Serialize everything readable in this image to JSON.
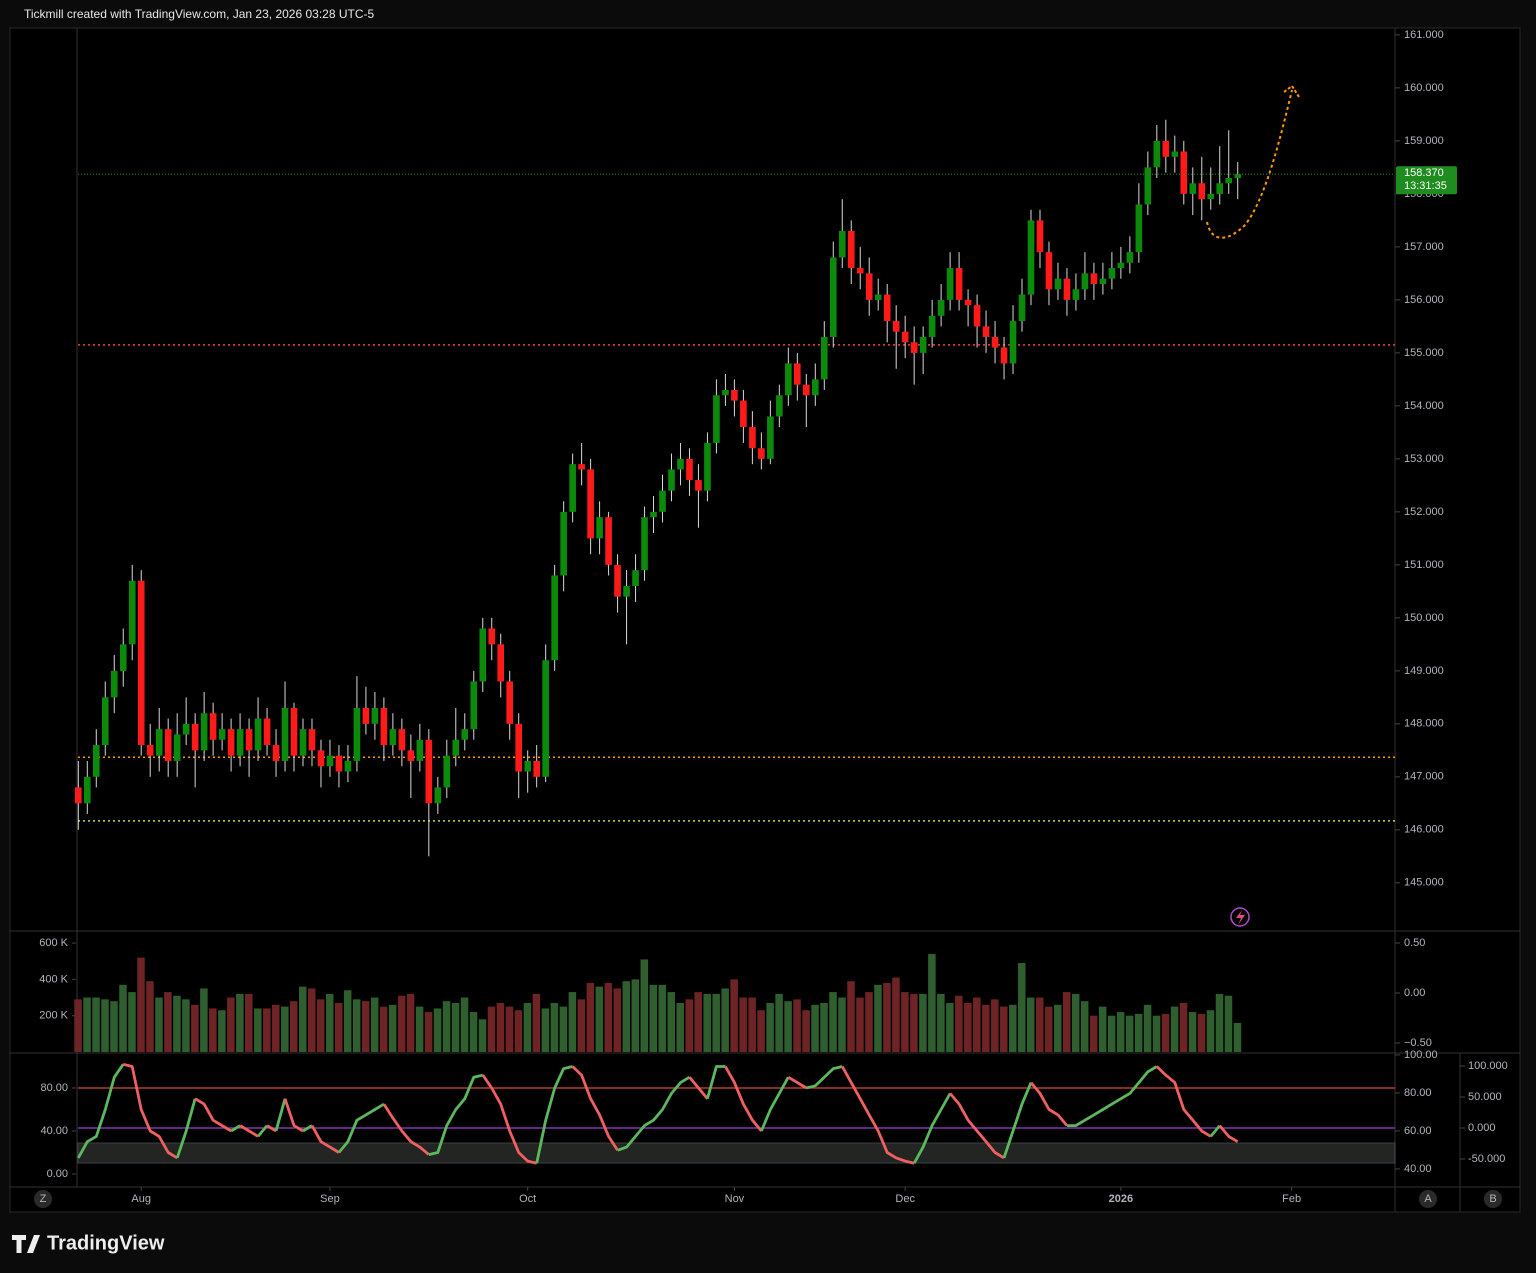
{
  "header": "Tickmill created with TradingView.com, Jan 23, 2026 03:28 UTC-5",
  "footer_logo": "TradingView",
  "buttons": [
    "Z",
    "A",
    "B"
  ],
  "chart_data": [
    {
      "type": "candlestick",
      "up_color": "#0c8a0c",
      "down_color": "#ff1a1a",
      "wick_color": "#d8d8d8",
      "xlim": [
        -7.6,
        146.5
      ],
      "xticks": [
        {
          "value": 7,
          "label": "Aug"
        },
        {
          "value": 28,
          "label": "Sep"
        },
        {
          "value": 50,
          "label": "Oct"
        },
        {
          "value": 73,
          "label": "Nov"
        },
        {
          "value": 92,
          "label": "Dec"
        },
        {
          "value": 116,
          "label": "2026"
        },
        {
          "value": 135,
          "label": "Feb"
        }
      ],
      "ylim": [
        144.11,
        161.13
      ],
      "yticks": [
        {
          "value": 145,
          "label": "145.000"
        },
        {
          "value": 146,
          "label": "146.000"
        },
        {
          "value": 147,
          "label": "147.000"
        },
        {
          "value": 148,
          "label": "148.000"
        },
        {
          "value": 149,
          "label": "149.000"
        },
        {
          "value": 150,
          "label": "150.000"
        },
        {
          "value": 151,
          "label": "151.000"
        },
        {
          "value": 152,
          "label": "152.000"
        },
        {
          "value": 153,
          "label": "153.000"
        },
        {
          "value": 154,
          "label": "154.000"
        },
        {
          "value": 155,
          "label": "155.000"
        },
        {
          "value": 156,
          "label": "156.000"
        },
        {
          "value": 157,
          "label": "157.000"
        },
        {
          "value": 158,
          "label": "158.000"
        },
        {
          "value": 159,
          "label": "159.000"
        },
        {
          "value": 160,
          "label": "160.000"
        },
        {
          "value": 161,
          "label": "161.000"
        }
      ],
      "grid": false,
      "levels": [
        {
          "value": 155.15,
          "color": "#f44336"
        },
        {
          "value": 147.37,
          "color": "#ff9800"
        },
        {
          "value": 146.17,
          "color": "#cddc39"
        }
      ],
      "last_price": {
        "value": 158.37,
        "label": "158.370",
        "countdown": "13:31:35",
        "color": "#1e8c1e"
      },
      "ohlc": [
        [
          146.8,
          147.3,
          146.0,
          146.5
        ],
        [
          146.5,
          147.3,
          146.3,
          147.0
        ],
        [
          147.0,
          147.9,
          146.8,
          147.6
        ],
        [
          147.6,
          148.8,
          147.4,
          148.5
        ],
        [
          148.5,
          149.3,
          148.2,
          149.0
        ],
        [
          149.0,
          149.8,
          148.7,
          149.5
        ],
        [
          149.5,
          151.0,
          149.2,
          150.7
        ],
        [
          150.7,
          150.9,
          147.4,
          147.6
        ],
        [
          147.6,
          148.0,
          147.0,
          147.4
        ],
        [
          147.4,
          148.3,
          147.1,
          147.9
        ],
        [
          147.9,
          148.1,
          147.0,
          147.3
        ],
        [
          147.3,
          148.2,
          147.0,
          147.8
        ],
        [
          147.8,
          148.5,
          147.6,
          148.0
        ],
        [
          148.0,
          148.2,
          146.8,
          147.5
        ],
        [
          147.5,
          148.6,
          147.3,
          148.2
        ],
        [
          148.2,
          148.4,
          147.4,
          147.7
        ],
        [
          147.7,
          148.2,
          147.5,
          147.9
        ],
        [
          147.9,
          148.1,
          147.1,
          147.4
        ],
        [
          147.4,
          148.2,
          147.2,
          147.9
        ],
        [
          147.9,
          148.1,
          147.0,
          147.5
        ],
        [
          147.5,
          148.5,
          147.3,
          148.1
        ],
        [
          148.1,
          148.3,
          147.4,
          147.6
        ],
        [
          147.6,
          147.9,
          147.0,
          147.3
        ],
        [
          147.3,
          148.8,
          147.1,
          148.3
        ],
        [
          148.3,
          148.4,
          147.1,
          147.4
        ],
        [
          147.4,
          148.1,
          147.2,
          147.9
        ],
        [
          147.9,
          148.1,
          147.2,
          147.5
        ],
        [
          147.5,
          147.7,
          146.8,
          147.2
        ],
        [
          147.2,
          147.7,
          147.0,
          147.4
        ],
        [
          147.4,
          147.6,
          146.8,
          147.1
        ],
        [
          147.1,
          147.6,
          146.9,
          147.3
        ],
        [
          147.3,
          148.9,
          147.1,
          148.3
        ],
        [
          148.3,
          148.7,
          147.8,
          148.0
        ],
        [
          148.0,
          148.6,
          147.7,
          148.3
        ],
        [
          148.3,
          148.5,
          147.3,
          147.6
        ],
        [
          147.6,
          148.2,
          147.4,
          147.9
        ],
        [
          147.9,
          148.1,
          147.2,
          147.5
        ],
        [
          147.5,
          147.8,
          146.6,
          147.3
        ],
        [
          147.3,
          148.0,
          147.1,
          147.7
        ],
        [
          147.7,
          147.9,
          145.5,
          146.5
        ],
        [
          146.5,
          147.0,
          146.3,
          146.8
        ],
        [
          146.8,
          147.7,
          146.6,
          147.4
        ],
        [
          147.4,
          148.3,
          147.2,
          147.7
        ],
        [
          147.7,
          148.2,
          147.5,
          147.9
        ],
        [
          147.9,
          149.0,
          147.7,
          148.8
        ],
        [
          148.8,
          150.0,
          148.6,
          149.8
        ],
        [
          149.8,
          150.0,
          149.2,
          149.5
        ],
        [
          149.5,
          149.7,
          148.5,
          148.8
        ],
        [
          148.8,
          149.0,
          147.7,
          148.0
        ],
        [
          148.0,
          148.2,
          146.6,
          147.1
        ],
        [
          147.1,
          147.5,
          146.7,
          147.3
        ],
        [
          147.3,
          147.6,
          146.8,
          147.0
        ],
        [
          147.0,
          149.5,
          146.9,
          149.2
        ],
        [
          149.2,
          151.0,
          149.0,
          150.8
        ],
        [
          150.8,
          152.2,
          150.5,
          152.0
        ],
        [
          152.0,
          153.1,
          151.8,
          152.9
        ],
        [
          152.9,
          153.3,
          152.5,
          152.8
        ],
        [
          152.8,
          153.0,
          151.2,
          151.5
        ],
        [
          151.5,
          152.2,
          151.2,
          151.9
        ],
        [
          151.9,
          152.0,
          150.8,
          151.0
        ],
        [
          151.0,
          151.2,
          150.1,
          150.4
        ],
        [
          150.4,
          150.9,
          149.5,
          150.6
        ],
        [
          150.6,
          151.2,
          150.3,
          150.9
        ],
        [
          150.9,
          152.1,
          150.7,
          151.9
        ],
        [
          151.9,
          152.3,
          151.6,
          152.0
        ],
        [
          152.0,
          152.7,
          151.8,
          152.4
        ],
        [
          152.4,
          153.1,
          152.2,
          152.8
        ],
        [
          152.8,
          153.3,
          152.5,
          153.0
        ],
        [
          153.0,
          153.2,
          152.3,
          152.6
        ],
        [
          152.6,
          152.9,
          151.7,
          152.4
        ],
        [
          152.4,
          153.5,
          152.2,
          153.3
        ],
        [
          153.3,
          154.5,
          153.1,
          154.2
        ],
        [
          154.2,
          154.6,
          154.0,
          154.3
        ],
        [
          154.3,
          154.5,
          153.8,
          154.1
        ],
        [
          154.1,
          154.3,
          153.3,
          153.6
        ],
        [
          153.6,
          153.9,
          152.9,
          153.2
        ],
        [
          153.2,
          153.5,
          152.8,
          153.0
        ],
        [
          153.0,
          154.1,
          152.9,
          153.8
        ],
        [
          153.8,
          154.4,
          153.6,
          154.2
        ],
        [
          154.2,
          155.1,
          154.0,
          154.8
        ],
        [
          154.8,
          155.0,
          154.1,
          154.4
        ],
        [
          154.4,
          154.6,
          153.6,
          154.2
        ],
        [
          154.2,
          154.8,
          154.0,
          154.5
        ],
        [
          154.5,
          155.6,
          154.3,
          155.3
        ],
        [
          155.3,
          157.1,
          155.1,
          156.8
        ],
        [
          156.8,
          157.9,
          156.6,
          157.3
        ],
        [
          157.3,
          157.5,
          156.3,
          156.6
        ],
        [
          156.6,
          157.0,
          156.2,
          156.5
        ],
        [
          156.5,
          156.8,
          155.7,
          156.0
        ],
        [
          156.0,
          156.4,
          155.8,
          156.1
        ],
        [
          156.1,
          156.3,
          155.2,
          155.6
        ],
        [
          155.6,
          155.9,
          154.7,
          155.4
        ],
        [
          155.4,
          155.7,
          154.9,
          155.2
        ],
        [
          155.2,
          155.5,
          154.4,
          155.0
        ],
        [
          155.0,
          155.5,
          154.6,
          155.3
        ],
        [
          155.3,
          156.0,
          155.1,
          155.7
        ],
        [
          155.7,
          156.3,
          155.5,
          156.0
        ],
        [
          156.0,
          156.9,
          155.8,
          156.6
        ],
        [
          156.6,
          156.9,
          155.8,
          156.0
        ],
        [
          156.0,
          156.2,
          155.5,
          155.9
        ],
        [
          155.9,
          156.1,
          155.1,
          155.5
        ],
        [
          155.5,
          155.8,
          155.0,
          155.3
        ],
        [
          155.3,
          155.6,
          154.8,
          155.1
        ],
        [
          155.1,
          155.3,
          154.5,
          154.8
        ],
        [
          154.8,
          155.9,
          154.6,
          155.6
        ],
        [
          155.6,
          156.4,
          155.4,
          156.1
        ],
        [
          156.1,
          157.7,
          155.9,
          157.5
        ],
        [
          157.5,
          157.7,
          156.6,
          156.9
        ],
        [
          156.9,
          157.1,
          155.9,
          156.2
        ],
        [
          156.2,
          156.7,
          156.0,
          156.4
        ],
        [
          156.4,
          156.6,
          155.7,
          156.0
        ],
        [
          156.0,
          156.5,
          155.8,
          156.2
        ],
        [
          156.2,
          156.9,
          156.0,
          156.5
        ],
        [
          156.5,
          156.7,
          156.0,
          156.3
        ],
        [
          156.3,
          156.7,
          156.1,
          156.4
        ],
        [
          156.4,
          156.9,
          156.2,
          156.6
        ],
        [
          156.6,
          157.0,
          156.4,
          156.7
        ],
        [
          156.7,
          157.2,
          156.5,
          156.9
        ],
        [
          156.9,
          158.2,
          156.7,
          157.8
        ],
        [
          157.8,
          158.8,
          157.6,
          158.5
        ],
        [
          158.5,
          159.3,
          158.3,
          159.0
        ],
        [
          159.0,
          159.4,
          158.4,
          158.7
        ],
        [
          158.7,
          159.1,
          158.4,
          158.8
        ],
        [
          158.8,
          159.0,
          157.8,
          158.0
        ],
        [
          158.0,
          158.5,
          157.6,
          158.2
        ],
        [
          158.2,
          158.7,
          157.5,
          157.9
        ],
        [
          157.9,
          158.5,
          157.7,
          158.0
        ],
        [
          158.0,
          158.9,
          157.8,
          158.2
        ],
        [
          158.2,
          159.2,
          158.0,
          158.3
        ],
        [
          158.3,
          158.6,
          157.9,
          158.37
        ]
      ]
    },
    {
      "type": "bar",
      "up_color": "#2f5f2f",
      "down_color": "#6e2424",
      "ylim": [
        0,
        661
      ],
      "yticks": [
        {
          "value": 200,
          "label": "200 K"
        },
        {
          "value": 400,
          "label": "400 K"
        },
        {
          "value": 600,
          "label": "600 K"
        }
      ],
      "y2lim": [
        -0.59,
        0.61
      ],
      "y2ticks": [
        {
          "value": -0.5,
          "label": "−0.50"
        },
        {
          "value": 0,
          "label": "0.00"
        },
        {
          "value": 0.5,
          "label": "0.50"
        }
      ],
      "values": [
        290,
        300,
        300,
        290,
        280,
        370,
        330,
        520,
        390,
        300,
        330,
        310,
        290,
        260,
        350,
        240,
        230,
        300,
        320,
        320,
        240,
        240,
        260,
        250,
        280,
        360,
        350,
        290,
        320,
        270,
        340,
        290,
        280,
        300,
        250,
        260,
        310,
        320,
        250,
        220,
        240,
        280,
        270,
        300,
        220,
        180,
        250,
        270,
        250,
        230,
        270,
        320,
        240,
        270,
        250,
        330,
        290,
        380,
        360,
        380,
        350,
        390,
        400,
        510,
        370,
        370,
        330,
        270,
        290,
        330,
        320,
        320,
        350,
        400,
        300,
        300,
        230,
        270,
        320,
        280,
        290,
        230,
        260,
        270,
        330,
        300,
        390,
        300,
        330,
        370,
        380,
        410,
        330,
        320,
        320,
        540,
        320,
        270,
        310,
        270,
        300,
        260,
        290,
        250,
        260,
        490,
        300,
        300,
        250,
        260,
        330,
        320,
        280,
        200,
        250,
        200,
        220,
        200,
        210,
        260,
        200,
        210,
        250,
        270,
        220,
        210,
        230,
        320,
        310,
        160
      ]
    },
    {
      "type": "line",
      "up_color": "#5cb85c",
      "down_color": "#f06060",
      "ylim": [
        -12.1,
        111.6
      ],
      "yticks": [
        {
          "value": 0,
          "label": "0.00"
        },
        {
          "value": 40,
          "label": "40.00"
        },
        {
          "value": 80,
          "label": "80.00"
        }
      ],
      "y2lim": [
        30.5,
        100.5
      ],
      "y2ticks": [
        {
          "value": 40,
          "label": "40.00"
        },
        {
          "value": 60,
          "label": "60.00"
        },
        {
          "value": 80,
          "label": "80.00"
        },
        {
          "value": 100,
          "label": "100.00"
        }
      ],
      "y3lim": [
        -95.2,
        119.4
      ],
      "y3ticks": [
        {
          "value": -50,
          "label": "-50.000"
        },
        {
          "value": 0,
          "label": "0.000"
        },
        {
          "value": 50,
          "label": "50.000"
        },
        {
          "value": 100,
          "label": "100.000"
        }
      ],
      "levels": [
        {
          "value": 80,
          "color": "#e0443a"
        },
        {
          "value": 42.8,
          "color": "#9c3fd0"
        }
      ],
      "band": [
        10.2,
        28.8
      ],
      "values": [
        15,
        30,
        35,
        60,
        90,
        102,
        100,
        60,
        40,
        35,
        20,
        15,
        40,
        70,
        65,
        50,
        45,
        40,
        45,
        40,
        35,
        45,
        40,
        70,
        45,
        40,
        45,
        30,
        25,
        20,
        30,
        50,
        55,
        60,
        65,
        52,
        40,
        30,
        25,
        18,
        20,
        45,
        60,
        70,
        90,
        92,
        80,
        65,
        40,
        20,
        12,
        10,
        50,
        80,
        98,
        100,
        92,
        70,
        55,
        35,
        22,
        25,
        35,
        45,
        50,
        60,
        75,
        85,
        90,
        80,
        70,
        100,
        100,
        85,
        65,
        50,
        40,
        60,
        75,
        90,
        85,
        80,
        82,
        90,
        98,
        100,
        85,
        70,
        55,
        40,
        20,
        15,
        12,
        10,
        25,
        45,
        60,
        75,
        65,
        50,
        40,
        30,
        20,
        15,
        40,
        65,
        85,
        75,
        60,
        55,
        45,
        45,
        50,
        55,
        60,
        65,
        70,
        75,
        85,
        95,
        100,
        92,
        85,
        60,
        50,
        40,
        35,
        45,
        35,
        30
      ]
    }
  ]
}
